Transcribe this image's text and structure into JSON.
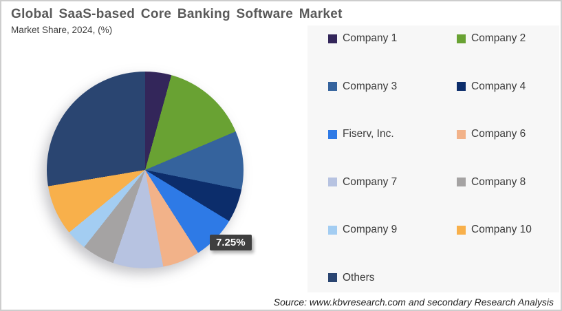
{
  "header": {
    "title": "Global SaaS-based Core Banking Software Market",
    "subtitle": "Market Share, 2024, (%)"
  },
  "data_label": "7.25%",
  "source_note": "Source: www.kbvresearch.com and secondary Research Analysis",
  "colors": {
    "callout_background": "#3f3f3f",
    "callout_text": "#ffffff",
    "legend_panel_background": "#f7f7f7",
    "title_text": "#595959"
  },
  "chart_data": {
    "type": "pie",
    "title": "Global SaaS-based Core Banking Software Market",
    "subtitle": "Market Share, 2024, (%)",
    "unit": "%",
    "start_angle_deg": 0,
    "direction": "clockwise",
    "legend_position": "right",
    "labeled_slice": {
      "name": "Fiserv, Inc.",
      "label": "7.25%"
    },
    "slices": [
      {
        "name": "Company 1",
        "value": 4.3,
        "color": "#33265a"
      },
      {
        "name": "Company 2",
        "value": 14.3,
        "color": "#69a233"
      },
      {
        "name": "Company 3",
        "value": 9.6,
        "color": "#35639d"
      },
      {
        "name": "Company 4",
        "value": 5.5,
        "color": "#0c2d6b"
      },
      {
        "name": "Fiserv, Inc.",
        "value": 7.25,
        "color": "#2e7ae6"
      },
      {
        "name": "Company 6",
        "value": 6.1,
        "color": "#f2b289"
      },
      {
        "name": "Company 7",
        "value": 8.2,
        "color": "#b7c3e1"
      },
      {
        "name": "Company 8",
        "value": 5.4,
        "color": "#a5a3a3"
      },
      {
        "name": "Company 9",
        "value": 3.4,
        "color": "#a3cdf2"
      },
      {
        "name": "Company 10",
        "value": 8.3,
        "color": "#f8b04b"
      },
      {
        "name": "Others",
        "value": 27.65,
        "color": "#2a4571"
      }
    ]
  }
}
